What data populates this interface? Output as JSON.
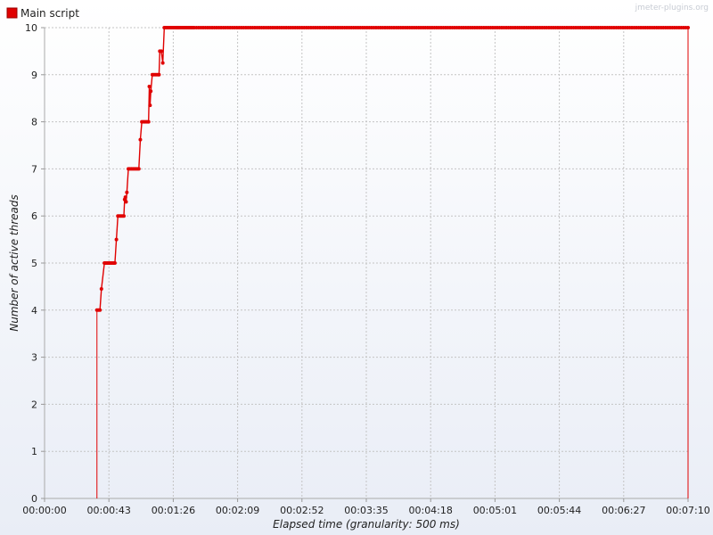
{
  "watermark": "jmeter-plugins.org",
  "chart_data": {
    "type": "line",
    "title": "",
    "xlabel": "Elapsed time (granularity: 500 ms)",
    "ylabel": "Number of active threads",
    "legend_position": "top-left",
    "grid": true,
    "xlim": [
      0,
      430
    ],
    "ylim": [
      0,
      10
    ],
    "x_ticks": [
      0,
      43,
      86,
      129,
      172,
      215,
      258,
      301,
      344,
      387,
      430
    ],
    "x_tick_labels": [
      "00:00:00",
      "00:00:43",
      "00:01:26",
      "00:02:09",
      "00:02:52",
      "00:03:35",
      "00:04:18",
      "00:05:01",
      "00:05:44",
      "00:06:27",
      "00:07:10"
    ],
    "y_ticks": [
      0,
      1,
      2,
      3,
      4,
      5,
      6,
      7,
      8,
      9,
      10
    ],
    "y_tick_labels": [
      "0",
      "1",
      "2",
      "3",
      "4",
      "5",
      "6",
      "7",
      "8",
      "9",
      "10"
    ],
    "series": [
      {
        "name": "Main script",
        "color": "#e00000",
        "x": [
          35,
          36,
          37,
          38,
          40,
          41,
          42,
          43,
          44,
          45,
          46,
          47,
          48,
          49,
          50,
          51,
          52,
          53,
          53.5,
          54,
          54.5,
          55,
          56,
          57,
          58,
          59,
          60,
          61,
          62,
          63,
          64,
          65,
          66,
          67,
          68,
          69,
          69.5,
          70,
          70.5,
          71,
          72,
          73,
          74,
          75,
          76,
          76.5,
          77,
          78,
          79,
          80,
          81,
          82,
          83,
          84,
          85,
          86,
          87,
          88,
          88.5,
          89,
          89.5,
          90,
          91,
          92,
          93,
          94,
          95,
          96,
          97,
          98,
          99,
          100,
          430
        ],
        "y": [
          4,
          4,
          4,
          4.45,
          5,
          5,
          5,
          5,
          5,
          5,
          5,
          5,
          5.5,
          6,
          6,
          6,
          6,
          6,
          6.35,
          6.4,
          6.3,
          6.5,
          7,
          7,
          7,
          7,
          7,
          7,
          7,
          7,
          7.62,
          8,
          8,
          8,
          8,
          8,
          8,
          8.75,
          8.35,
          8.65,
          9,
          9,
          9,
          9,
          9,
          9,
          9.5,
          9.5,
          9.25,
          10,
          10,
          10,
          10,
          10,
          10,
          10,
          10,
          10,
          10,
          10,
          10,
          10,
          10,
          10,
          10,
          10,
          10,
          10,
          10,
          10,
          10,
          10,
          10
        ],
        "drop_lines_at": [
          35,
          430
        ]
      }
    ]
  }
}
